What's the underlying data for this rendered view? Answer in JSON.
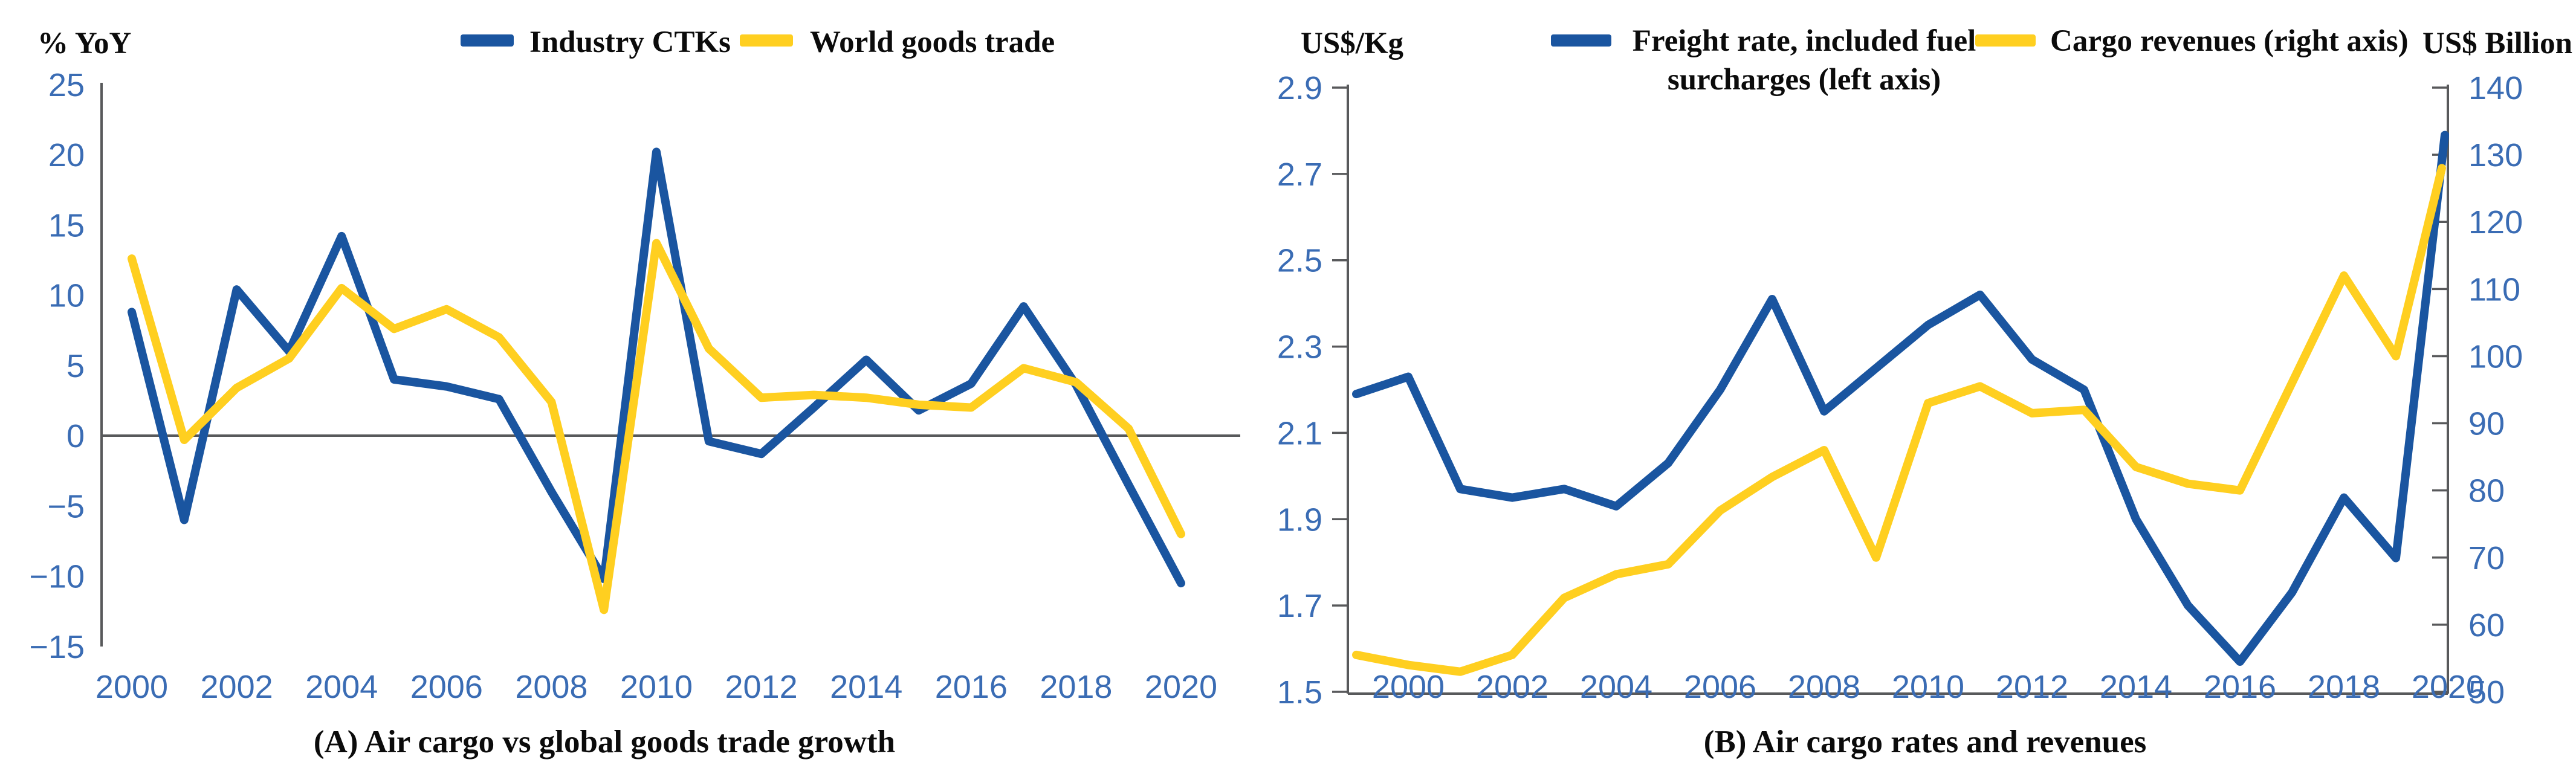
{
  "figure": {
    "background": "#ffffff",
    "accent_label_color": "#3A6CB4",
    "axis_color": "#58595B"
  },
  "chart_data": [
    {
      "type": "line",
      "title": "(A) Air cargo vs global goods trade growth",
      "ylabel": "% YoY",
      "xlabel": "",
      "ylim": [
        -15,
        25
      ],
      "y_ticks": [
        25,
        20,
        15,
        10,
        5,
        0,
        -5,
        -10,
        -15
      ],
      "x_ticks": [
        2000,
        2002,
        2004,
        2006,
        2008,
        2010,
        2012,
        2014,
        2016,
        2018,
        2020
      ],
      "zero_line": true,
      "legend_position": "top",
      "x": [
        2000,
        2001,
        2002,
        2003,
        2004,
        2005,
        2006,
        2007,
        2008,
        2009,
        2010,
        2011,
        2012,
        2013,
        2014,
        2015,
        2016,
        2017,
        2018,
        2019,
        2020
      ],
      "series": [
        {
          "name": "Industry CTKs",
          "color": "#1A55A0",
          "values": [
            8.8,
            -6.0,
            10.4,
            6.0,
            14.2,
            4.0,
            3.5,
            2.6,
            -4.0,
            -10.2,
            20.2,
            -0.4,
            -1.3,
            2.0,
            5.4,
            1.8,
            3.7,
            9.2,
            3.6,
            -3.5,
            -10.5
          ]
        },
        {
          "name": "World goods trade",
          "color": "#FFCF20",
          "values": [
            12.6,
            -0.3,
            3.4,
            5.5,
            10.5,
            7.6,
            9.0,
            7.0,
            2.4,
            -12.4,
            13.7,
            6.2,
            2.7,
            2.9,
            2.7,
            2.2,
            2.0,
            4.8,
            3.8,
            0.5,
            -7.0
          ]
        }
      ]
    },
    {
      "type": "line",
      "title": "(B) Air cargo rates and revenues",
      "ylabel_left": "US$/Kg",
      "ylabel_right": "US$ Billion",
      "left_ylim": [
        1.5,
        2.9
      ],
      "right_ylim": [
        50,
        140
      ],
      "left_ticks": [
        2.9,
        2.7,
        2.5,
        2.3,
        2.1,
        1.9,
        1.7,
        1.5
      ],
      "right_ticks": [
        140,
        130,
        120,
        110,
        100,
        90,
        80,
        70,
        60,
        50
      ],
      "x_ticks": [
        2000,
        2002,
        2004,
        2006,
        2008,
        2010,
        2012,
        2014,
        2016,
        2018,
        2020
      ],
      "legend_position": "top",
      "x": [
        1999,
        2000,
        2001,
        2002,
        2003,
        2004,
        2005,
        2006,
        2007,
        2008,
        2009,
        2010,
        2011,
        2012,
        2013,
        2014,
        2015,
        2016,
        2017,
        2018,
        2019,
        2020
      ],
      "series": [
        {
          "name": "Freight rate, included fuel surcharges (left axis)",
          "legend_lines": [
            "Freight rate, included fuel",
            "surcharges (left axis)"
          ],
          "axis": "left",
          "color": "#1A55A0",
          "values": [
            2.19,
            2.23,
            1.97,
            1.95,
            1.97,
            1.93,
            2.03,
            2.2,
            2.41,
            2.15,
            2.25,
            2.35,
            2.42,
            2.27,
            2.2,
            1.9,
            1.7,
            1.57,
            1.73,
            1.95,
            1.81,
            2.79
          ]
        },
        {
          "name": "Cargo revenues (right axis)",
          "legend_lines": [
            "Cargo revenues (right axis)"
          ],
          "axis": "right",
          "color": "#FFCF20",
          "values": [
            55.5,
            54,
            53,
            55.5,
            64,
            67.5,
            69,
            77,
            82,
            86,
            70,
            93,
            95.5,
            91.5,
            92,
            83.5,
            81,
            80,
            96,
            112,
            100,
            128
          ]
        }
      ]
    }
  ]
}
